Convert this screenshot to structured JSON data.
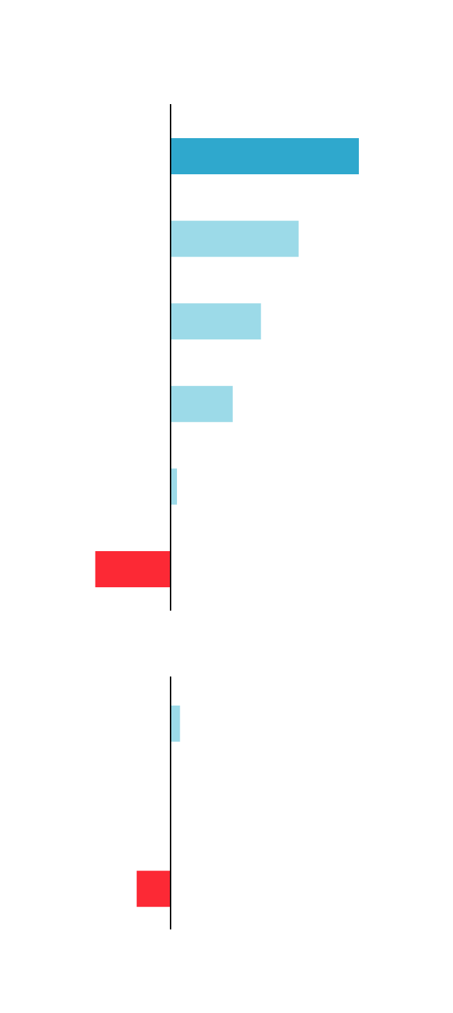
{
  "chart_data": [
    {
      "type": "bar",
      "orientation": "horizontal",
      "title": "",
      "xlabel": "",
      "ylabel": "",
      "categories": [
        "",
        "",
        "",
        "",
        "",
        ""
      ],
      "values": [
        100,
        68,
        48,
        33,
        3.4,
        -40
      ],
      "colors": [
        "#2fa8cd",
        "#9cdae8",
        "#9cdae8",
        "#9cdae8",
        "#9cdae8",
        "#fc2935"
      ],
      "xlim": [
        -90,
        125
      ],
      "grid": false,
      "legend": "none"
    },
    {
      "type": "bar",
      "orientation": "horizontal",
      "title": "",
      "xlabel": "",
      "ylabel": "",
      "categories": [
        "",
        "",
        ""
      ],
      "values": [
        5,
        0,
        -18
      ],
      "colors": [
        "#9cdae8",
        "#9cdae8",
        "#fc2935"
      ],
      "xlim": [
        -90,
        125
      ],
      "grid": false,
      "legend": "none"
    }
  ],
  "colors": {
    "axis": "#000000",
    "highlight": "#2fa8cd",
    "positive": "#9cdae8",
    "negative": "#fc2935"
  }
}
